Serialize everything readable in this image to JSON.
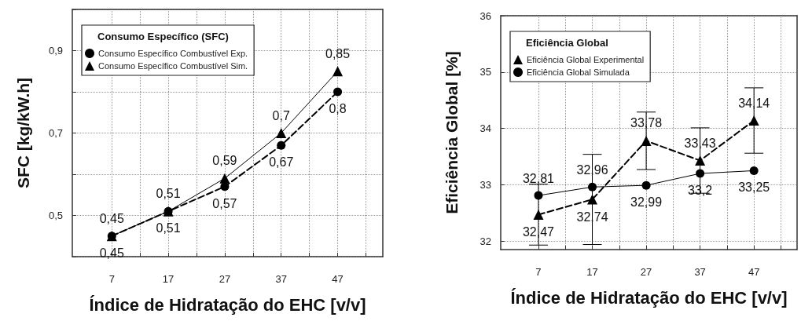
{
  "chart_data": [
    {
      "type": "line",
      "legend_title": "Consumo Específico (SFC)",
      "xlabel": "Índice de Hidratação do EHC [v/v]",
      "ylabel": "SFC [kg/kW.h]",
      "x": [
        7,
        17,
        27,
        37,
        47
      ],
      "series": [
        {
          "name": "Consumo Específico Combustível Exp.",
          "color": "#000000",
          "marker": "circle",
          "line_style": "dashed",
          "values": [
            0.45,
            0.51,
            0.57,
            0.67,
            0.8
          ],
          "value_labels": [
            "0,45",
            "0,51",
            "0,57",
            "0,67",
            "0,8"
          ]
        },
        {
          "name": "Consumo Específico Combustível Sim.",
          "color": "#000000",
          "marker": "triangle",
          "line_style": "solid",
          "values": [
            0.45,
            0.51,
            0.59,
            0.7,
            0.85
          ],
          "value_labels": [
            "0,45",
            "0,51",
            "0,59",
            "0,7",
            "0,85"
          ]
        }
      ],
      "xlim": [
        0,
        55
      ],
      "xticks": [
        7,
        {
          "value": 12,
          "label": null
        },
        17,
        {
          "value": 22,
          "label": null
        },
        27,
        {
          "value": 32,
          "label": null
        },
        37,
        {
          "value": 42,
          "label": null
        },
        47,
        {
          "value": 52,
          "label": null
        }
      ],
      "ylim": [
        0.4,
        1.0
      ],
      "yticks": [
        {
          "value": 0.4,
          "label": null
        },
        {
          "value": 0.5,
          "label": "0,5"
        },
        {
          "value": 0.6,
          "label": null
        },
        {
          "value": 0.7,
          "label": "0,7"
        },
        {
          "value": 0.8,
          "label": null
        },
        {
          "value": 0.9,
          "label": "0,9"
        },
        {
          "value": 1.0,
          "label": null
        }
      ],
      "grid": true,
      "legend": "top left"
    },
    {
      "type": "line",
      "legend_title": "Eficiência Global",
      "xlabel": "Índice de Hidratação do EHC [v/v]",
      "ylabel": "Eficiência Global [%]",
      "x": [
        7,
        17,
        27,
        37,
        47
      ],
      "series": [
        {
          "name": "Eficiência Global Experimental",
          "color": "#000000",
          "marker": "triangle",
          "line_style": "dashed",
          "values": [
            32.47,
            32.74,
            33.78,
            33.43,
            34.14
          ],
          "errors": [
            0.54,
            0.8,
            0.51,
            0.58,
            0.58
          ],
          "value_labels": [
            "32,47",
            "32,74",
            "33,78",
            "33,43",
            "34,14"
          ]
        },
        {
          "name": "Eficiência Global Simulada",
          "color": "#000000",
          "marker": "circle",
          "line_style": "solid",
          "values": [
            32.81,
            32.96,
            32.99,
            33.2,
            33.25
          ],
          "value_labels": [
            "32,81",
            "32,96",
            "32,99",
            "33,2",
            "33,25"
          ]
        }
      ],
      "xlim": [
        0,
        55
      ],
      "xticks": [
        7,
        {
          "value": 12,
          "label": null
        },
        17,
        {
          "value": 22,
          "label": null
        },
        27,
        {
          "value": 32,
          "label": null
        },
        37,
        {
          "value": 42,
          "label": null
        },
        47,
        {
          "value": 52,
          "label": null
        }
      ],
      "ylim": [
        31.85,
        36
      ],
      "yticks": [
        32,
        33,
        34,
        35,
        36
      ],
      "grid": true,
      "legend": "top left"
    }
  ]
}
